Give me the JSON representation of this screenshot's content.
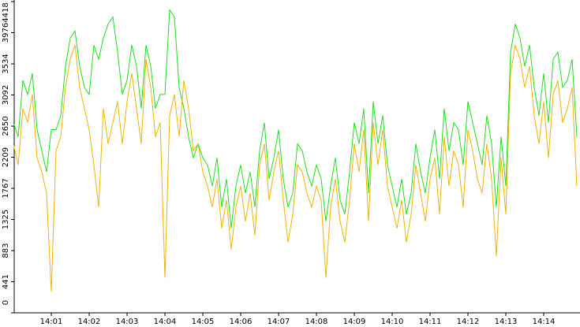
{
  "chart_data": {
    "type": "line",
    "categories": [
      null,
      null,
      null,
      null,
      null,
      null,
      null,
      null,
      "14:01",
      null,
      null,
      null,
      null,
      null,
      null,
      null,
      "14:02",
      null,
      null,
      null,
      null,
      null,
      null,
      null,
      "14:03",
      null,
      null,
      null,
      null,
      null,
      null,
      null,
      "14:04",
      null,
      null,
      null,
      null,
      null,
      null,
      null,
      "14:05",
      null,
      null,
      null,
      null,
      null,
      null,
      null,
      "14:06",
      null,
      null,
      null,
      null,
      null,
      null,
      null,
      "14:07",
      null,
      null,
      null,
      null,
      null,
      null,
      null,
      "14:08",
      null,
      null,
      null,
      null,
      null,
      null,
      null,
      "14:09",
      null,
      null,
      null,
      null,
      null,
      null,
      null,
      "14:10",
      null,
      null,
      null,
      null,
      null,
      null,
      null,
      "14:11",
      null,
      null,
      null,
      null,
      null,
      null,
      null,
      "14:12",
      null,
      null,
      null,
      null,
      null,
      null,
      null,
      "14:13",
      null,
      null,
      null,
      null,
      null,
      null,
      null,
      "14:14",
      null,
      null,
      null,
      null,
      null,
      null,
      null
    ],
    "series": [
      {
        "color": "#22dd22",
        "values": [
          2700,
          2500,
          3300,
          3100,
          3400,
          2600,
          2300,
          2000,
          2600,
          2600,
          2800,
          3500,
          3900,
          4000,
          3500,
          3200,
          3100,
          3800,
          3600,
          3900,
          4100,
          4200,
          3700,
          3100,
          3300,
          3800,
          3500,
          2900,
          3800,
          3500,
          2900,
          3100,
          3100,
          4300,
          4200,
          3200,
          2900,
          2500,
          2200,
          2400,
          2200,
          2100,
          1800,
          2200,
          1500,
          1900,
          1200,
          1800,
          2100,
          1700,
          2000,
          1500,
          2300,
          2700,
          1900,
          2200,
          2600,
          1900,
          1500,
          1700,
          2400,
          2300,
          2000,
          1800,
          2100,
          1900,
          1300,
          1800,
          2200,
          1600,
          1400,
          2000,
          2700,
          2400,
          2900,
          1700,
          3000,
          2400,
          2800,
          2100,
          1800,
          1500,
          1900,
          1400,
          1700,
          2400,
          2000,
          1700,
          2200,
          2600,
          1900,
          2900,
          2300,
          2700,
          2600,
          2100,
          3000,
          2700,
          2400,
          2100,
          2800,
          2400,
          1500,
          2500,
          1800,
          3700,
          4100,
          3900,
          3500,
          3800,
          3200,
          2800,
          3400,
          2700,
          3600,
          3700,
          3200,
          3300,
          3600,
          2500
        ]
      },
      {
        "color": "#f0b400",
        "values": [
          2400,
          2100,
          2900,
          2700,
          3100,
          2200,
          2000,
          1700,
          300,
          2300,
          2500,
          3200,
          3600,
          3800,
          3200,
          2900,
          2600,
          2100,
          1500,
          2900,
          2400,
          2700,
          3000,
          2400,
          3000,
          3400,
          2900,
          2400,
          3600,
          3200,
          2500,
          2700,
          500,
          2800,
          3100,
          2500,
          3300,
          2900,
          2300,
          2400,
          2000,
          1800,
          1500,
          1900,
          1200,
          1600,
          900,
          1500,
          1800,
          1300,
          1700,
          1100,
          2100,
          2400,
          1600,
          2000,
          2300,
          1600,
          1000,
          1400,
          2100,
          2000,
          1700,
          1500,
          1800,
          1600,
          500,
          1500,
          1900,
          1300,
          1000,
          1600,
          2400,
          2000,
          2600,
          1300,
          2700,
          2100,
          2600,
          1800,
          1500,
          1200,
          1600,
          1000,
          1400,
          2100,
          1700,
          1300,
          1900,
          2200,
          1400,
          2500,
          1800,
          2300,
          2100,
          1500,
          2600,
          2300,
          1900,
          1700,
          2400,
          1900,
          800,
          2200,
          1400,
          3400,
          3800,
          3600,
          3200,
          3500,
          2800,
          2400,
          3000,
          2200,
          3100,
          3300,
          2700,
          2900,
          3200,
          1800
        ]
      }
    ],
    "ylim": [
      0,
      4418
    ],
    "yticks": [
      0,
      441,
      883,
      1325,
      1767,
      2209,
      2650,
      3092,
      3534,
      3976,
      4418
    ],
    "grid": false
  }
}
